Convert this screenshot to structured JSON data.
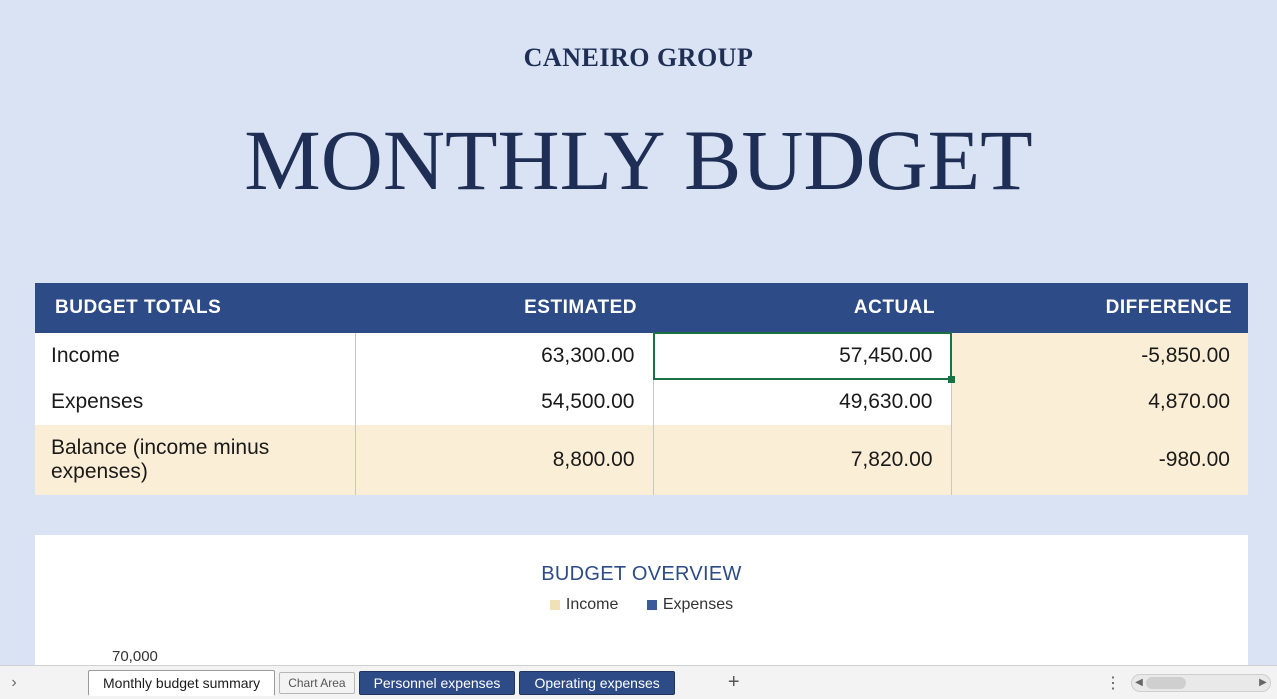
{
  "header": {
    "company": "CANEIRO GROUP",
    "title": "MONTHLY BUDGET"
  },
  "budget_table": {
    "columns": [
      "BUDGET TOTALS",
      "ESTIMATED",
      "ACTUAL",
      "DIFFERENCE"
    ],
    "rows": [
      {
        "label": "Income",
        "estimated": "63,300.00",
        "actual": "57,450.00",
        "difference": "-5,850.00",
        "diff_negative": true,
        "highlight_row": false
      },
      {
        "label": "Expenses",
        "estimated": "54,500.00",
        "actual": "49,630.00",
        "difference": "4,870.00",
        "diff_negative": false,
        "highlight_row": false
      },
      {
        "label": "Balance (income minus expenses)",
        "estimated": "8,800.00",
        "actual": "7,820.00",
        "difference": "-980.00",
        "diff_negative": true,
        "highlight_row": true
      }
    ],
    "selected_cell": {
      "row": 0,
      "col": "actual"
    },
    "colors": {
      "header_bg": "#2d4b87",
      "header_text": "#ffffff",
      "row_bg": "#ffffff",
      "diff_bg": "#fbeed6",
      "balance_bg": "#fbeed6",
      "negative_text": "#c00000",
      "selection_border": "#1d7044"
    }
  },
  "chart": {
    "title": "BUDGET OVERVIEW",
    "legend": [
      {
        "label": "Income",
        "color": "#f1e0b8"
      },
      {
        "label": "Expenses",
        "color": "#3b5a99"
      }
    ],
    "y_axis_first_tick": "70,000",
    "background": "#ffffff"
  },
  "tabs": {
    "active": "Monthly budget summary",
    "chart_label": "Chart Area",
    "others": [
      "Personnel expenses",
      "Operating expenses"
    ]
  },
  "page_bg": "#d9e3f3"
}
